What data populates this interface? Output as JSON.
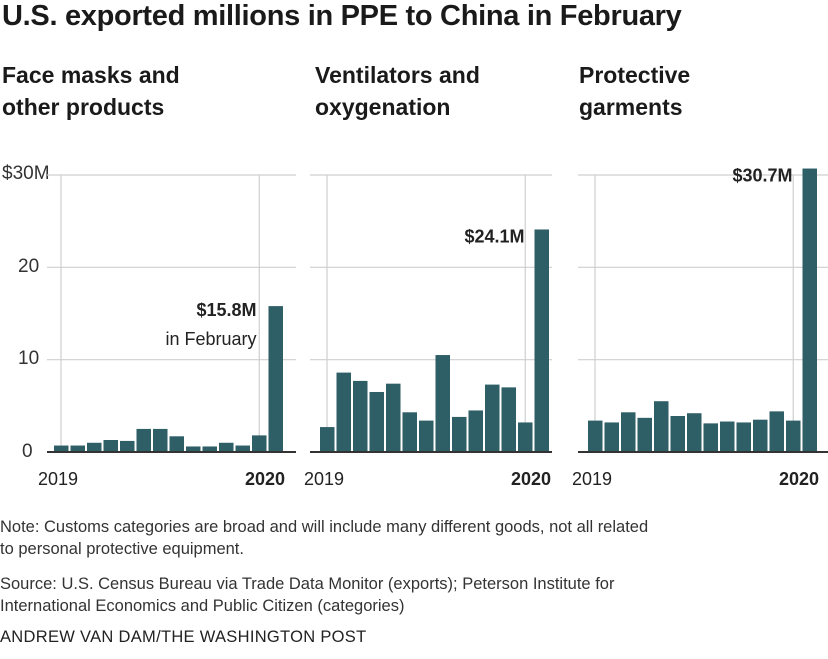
{
  "title": "U.S. exported millions in PPE to China in February",
  "colors": {
    "bar": "#2e5e66",
    "grid": "#cfcfcf",
    "baseline": "#333333",
    "text": "#222222"
  },
  "y_axis": {
    "tick_labels": [
      "$30M",
      "20",
      "10",
      "0"
    ]
  },
  "chart_data": [
    {
      "type": "bar",
      "title": "Face masks and other products",
      "title_lines": [
        "Face masks and",
        "other products"
      ],
      "x_tick_start": "2019",
      "x_tick_end": "2020",
      "ylim": [
        0,
        30
      ],
      "values": [
        0.7,
        0.7,
        1.0,
        1.3,
        1.2,
        2.5,
        2.5,
        1.7,
        0.6,
        0.6,
        1.0,
        0.7,
        1.8,
        15.8
      ],
      "annotation": {
        "value": "$15.8M",
        "note": "in February"
      }
    },
    {
      "type": "bar",
      "title": "Ventilators and oxygenation",
      "title_lines": [
        "Ventilators and",
        "oxygenation"
      ],
      "x_tick_start": "2019",
      "x_tick_end": "2020",
      "ylim": [
        0,
        30
      ],
      "values": [
        2.7,
        8.6,
        7.7,
        6.5,
        7.4,
        4.3,
        3.4,
        10.5,
        3.8,
        4.5,
        7.3,
        7.0,
        3.2,
        24.1
      ],
      "annotation": {
        "value": "$24.1M",
        "note": ""
      }
    },
    {
      "type": "bar",
      "title": "Protective garments",
      "title_lines": [
        "Protective",
        "garments"
      ],
      "x_tick_start": "2019",
      "x_tick_end": "2020",
      "ylim": [
        0,
        30
      ],
      "values": [
        3.4,
        3.2,
        4.3,
        3.7,
        5.5,
        3.9,
        4.2,
        3.1,
        3.3,
        3.2,
        3.5,
        4.4,
        3.4,
        30.7
      ],
      "annotation": {
        "value": "$30.7M",
        "note": ""
      }
    }
  ],
  "note": [
    "Note: Customs categories are broad and will include many different goods, not all related",
    "to personal protective equipment."
  ],
  "source": [
    "Source: U.S. Census Bureau via Trade Data Monitor (exports); Peterson Institute for",
    "International Economics and Public Citizen (categories)"
  ],
  "credit": "ANDREW VAN DAM/THE WASHINGTON POST"
}
